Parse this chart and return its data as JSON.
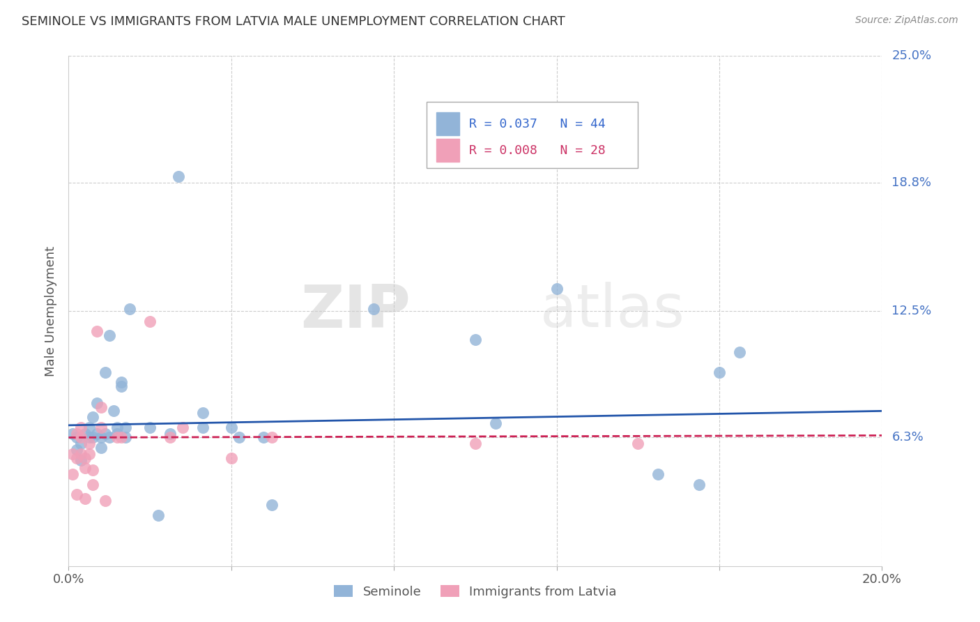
{
  "title": "SEMINOLE VS IMMIGRANTS FROM LATVIA MALE UNEMPLOYMENT CORRELATION CHART",
  "source": "Source: ZipAtlas.com",
  "ylabel_label": "Male Unemployment",
  "x_min": 0.0,
  "x_max": 0.2,
  "y_min": 0.0,
  "y_max": 0.25,
  "x_ticks": [
    0.0,
    0.04,
    0.08,
    0.12,
    0.16,
    0.2
  ],
  "x_tick_labels": [
    "0.0%",
    "",
    "",
    "",
    "",
    "20.0%"
  ],
  "y_tick_labels_right": [
    "25.0%",
    "18.8%",
    "12.5%",
    "6.3%"
  ],
  "y_tick_vals_right": [
    0.25,
    0.188,
    0.125,
    0.063
  ],
  "watermark_zip": "ZIP",
  "watermark_atlas": "atlas",
  "blue_color": "#92b4d8",
  "pink_color": "#f0a0b8",
  "blue_line_color": "#2255aa",
  "pink_line_color": "#cc2255",
  "grid_color": "#cccccc",
  "legend_blue_R": "R = 0.037",
  "legend_blue_N": "N = 44",
  "legend_pink_R": "R = 0.008",
  "legend_pink_N": "N = 28",
  "seminole_label": "Seminole",
  "latvia_label": "Immigrants from Latvia",
  "seminole_x": [
    0.001,
    0.002,
    0.002,
    0.003,
    0.003,
    0.004,
    0.005,
    0.005,
    0.006,
    0.006,
    0.007,
    0.007,
    0.008,
    0.008,
    0.009,
    0.009,
    0.01,
    0.01,
    0.011,
    0.012,
    0.012,
    0.013,
    0.013,
    0.014,
    0.014,
    0.015,
    0.02,
    0.022,
    0.025,
    0.027,
    0.04,
    0.042,
    0.048,
    0.05,
    0.075,
    0.1,
    0.105,
    0.12,
    0.145,
    0.155,
    0.16,
    0.165,
    0.033,
    0.033
  ],
  "seminole_y": [
    0.065,
    0.063,
    0.057,
    0.06,
    0.052,
    0.065,
    0.063,
    0.068,
    0.073,
    0.063,
    0.065,
    0.08,
    0.063,
    0.058,
    0.065,
    0.095,
    0.063,
    0.113,
    0.076,
    0.065,
    0.068,
    0.088,
    0.09,
    0.063,
    0.068,
    0.126,
    0.068,
    0.025,
    0.065,
    0.191,
    0.068,
    0.063,
    0.063,
    0.03,
    0.126,
    0.111,
    0.07,
    0.136,
    0.045,
    0.04,
    0.095,
    0.105,
    0.068,
    0.075
  ],
  "latvia_x": [
    0.001,
    0.001,
    0.002,
    0.002,
    0.003,
    0.003,
    0.003,
    0.004,
    0.004,
    0.004,
    0.005,
    0.005,
    0.006,
    0.006,
    0.007,
    0.008,
    0.008,
    0.009,
    0.012,
    0.013,
    0.02,
    0.025,
    0.028,
    0.04,
    0.05,
    0.1,
    0.14,
    0.002
  ],
  "latvia_y": [
    0.055,
    0.045,
    0.065,
    0.053,
    0.063,
    0.055,
    0.068,
    0.053,
    0.048,
    0.033,
    0.055,
    0.06,
    0.047,
    0.04,
    0.115,
    0.068,
    0.078,
    0.032,
    0.063,
    0.063,
    0.12,
    0.063,
    0.068,
    0.053,
    0.063,
    0.06,
    0.06,
    0.035
  ],
  "blue_trendline_x": [
    0.0,
    0.2
  ],
  "blue_trendline_y": [
    0.069,
    0.076
  ],
  "pink_trendline_x": [
    0.0,
    0.2
  ],
  "pink_trendline_y": [
    0.063,
    0.064
  ]
}
